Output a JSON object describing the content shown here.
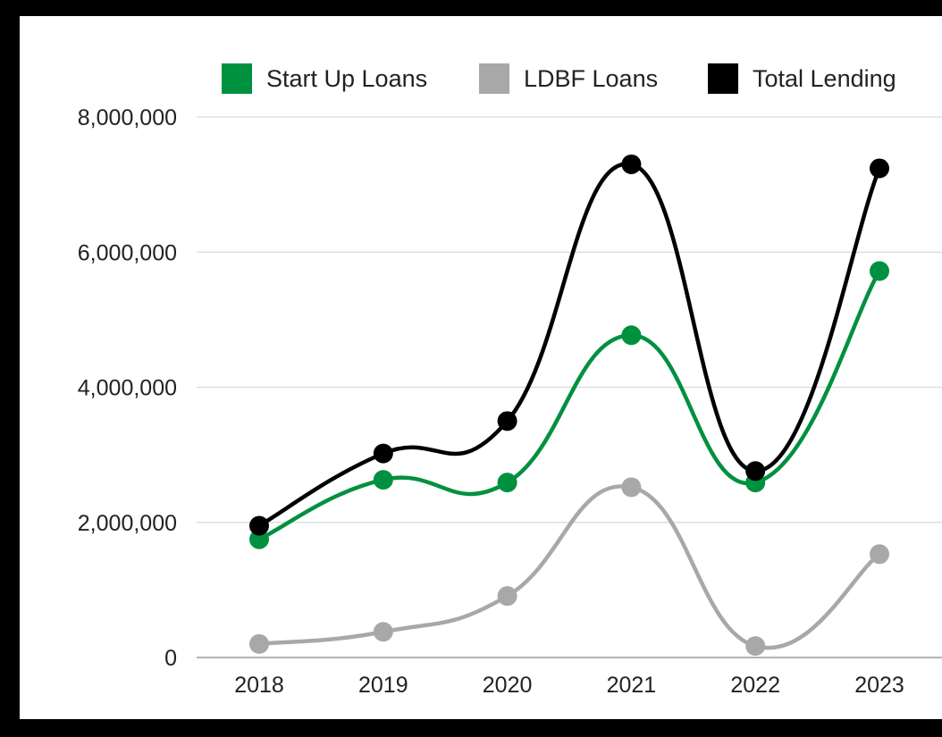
{
  "chart_data": {
    "type": "line",
    "smooth": true,
    "title": "",
    "xlabel": "",
    "ylabel": "",
    "categories": [
      "2018",
      "2019",
      "2020",
      "2021",
      "2022",
      "2023"
    ],
    "ylim": [
      0,
      8000000
    ],
    "yticks": [
      0,
      2000000,
      4000000,
      6000000,
      8000000
    ],
    "ytick_labels": [
      "0",
      "2,000,000",
      "4,000,000",
      "6,000,000",
      "8,000,000"
    ],
    "grid": true,
    "legend_position": "top",
    "series": [
      {
        "name": "Start Up Loans",
        "color": "#00913f",
        "values": [
          1750000,
          2630000,
          2590000,
          4770000,
          2590000,
          5720000
        ]
      },
      {
        "name": "LDBF Loans",
        "color": "#a8a8a8",
        "values": [
          200000,
          380000,
          910000,
          2520000,
          170000,
          1530000
        ]
      },
      {
        "name": "Total Lending",
        "color": "#000000",
        "values": [
          1950000,
          3020000,
          3500000,
          7300000,
          2760000,
          7240000
        ]
      }
    ]
  }
}
